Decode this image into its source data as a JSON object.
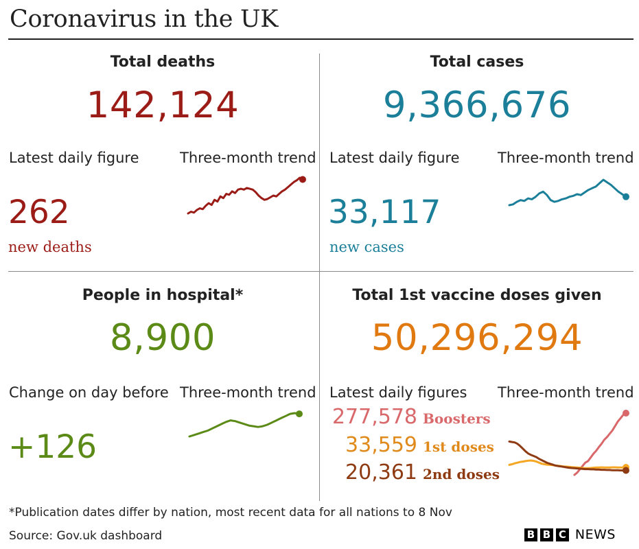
{
  "header": {
    "title": "Coronavirus in the UK"
  },
  "panels": {
    "deaths": {
      "title": "Total deaths",
      "total": "142,124",
      "color": "#9b1c16",
      "daily_label": "Latest daily figure",
      "trend_label": "Three-month trend",
      "daily_value": "262",
      "daily_sub": "new deaths"
    },
    "cases": {
      "title": "Total cases",
      "total": "9,366,676",
      "color": "#1b7f99",
      "daily_label": "Latest daily figure",
      "trend_label": "Three-month trend",
      "daily_value": "33,117",
      "daily_sub": "new cases"
    },
    "hospital": {
      "title": "People in hospital*",
      "total": "8,900",
      "color": "#5b8a16",
      "daily_label": "Change on day before",
      "trend_label": "Three-month trend",
      "daily_value": "+126"
    },
    "vaccine": {
      "title": "Total 1st vaccine doses given",
      "total": "50,296,294",
      "color": "#e07a10",
      "daily_label": "Latest daily figures",
      "trend_label": "Three-month trend",
      "boosters": {
        "value": "277,578",
        "label": "Boosters",
        "color": "#d9686b"
      },
      "first": {
        "value": "33,559",
        "label": "1st doses",
        "color": "#e08a1c"
      },
      "second": {
        "value": "20,361",
        "label": "2nd doses",
        "color": "#8e3a12"
      }
    }
  },
  "footer": {
    "note": "*Publication dates differ by nation, most recent data for all nations to 8 Nov",
    "source": "Source: Gov.uk dashboard",
    "brand_letters": [
      "B",
      "B",
      "C"
    ],
    "brand_word": "NEWS"
  },
  "chart_data": [
    {
      "type": "line",
      "name": "deaths-trend",
      "series": [
        {
          "values": [
            10,
            12,
            11,
            14,
            16,
            15,
            19,
            22,
            20,
            26,
            24,
            30,
            28,
            33,
            32,
            36,
            34,
            38,
            39,
            38,
            40,
            39,
            38,
            35,
            31,
            28,
            26,
            27,
            29,
            31,
            30,
            33,
            36,
            38,
            41,
            44,
            47,
            49,
            52,
            50
          ]
        }
      ]
    },
    {
      "type": "line",
      "name": "cases-trend",
      "series": [
        {
          "values": [
            20,
            21,
            24,
            26,
            25,
            28,
            27,
            30,
            34,
            36,
            32,
            26,
            24,
            25,
            27,
            28,
            30,
            31,
            33,
            32,
            35,
            38,
            40,
            42,
            46,
            50,
            47,
            44,
            40,
            36,
            33,
            30
          ]
        }
      ]
    },
    {
      "type": "line",
      "name": "hospital-trend",
      "series": [
        {
          "values": [
            10,
            12,
            14,
            16,
            18,
            21,
            24,
            27,
            30,
            32,
            31,
            29,
            27,
            25,
            24,
            23,
            24,
            26,
            29,
            32,
            35,
            38,
            41,
            42,
            41
          ]
        }
      ]
    },
    {
      "type": "line",
      "name": "vaccine-trend",
      "series": [
        {
          "name": "Boosters",
          "values": [
            null,
            null,
            null,
            null,
            null,
            null,
            null,
            null,
            null,
            null,
            null,
            null,
            null,
            null,
            null,
            null,
            null,
            null,
            null,
            null,
            null,
            null,
            null,
            null,
            0,
            10,
            25,
            40,
            55,
            62,
            78,
            95,
            108,
            125,
            140,
            158,
            170,
            185,
            200,
            220,
            240,
            255,
            270,
            278
          ]
        },
        {
          "name": "1st doses",
          "values": [
            45,
            48,
            52,
            55,
            58,
            60,
            62,
            64,
            65,
            63,
            60,
            55,
            50,
            48,
            46,
            45,
            44,
            42,
            41,
            40,
            38,
            37,
            36,
            35,
            34,
            33,
            32,
            31,
            30,
            30,
            31,
            32,
            33,
            33,
            34,
            33,
            33,
            33,
            34,
            34,
            33,
            33,
            33,
            34
          ]
        },
        {
          "name": "2nd doses",
          "values": [
            150,
            148,
            146,
            140,
            130,
            118,
            106,
            96,
            90,
            85,
            80,
            72,
            66,
            60,
            54,
            50,
            46,
            42,
            40,
            38,
            36,
            34,
            32,
            31,
            30,
            29,
            28,
            27,
            26,
            26,
            25,
            25,
            24,
            24,
            23,
            23,
            22,
            22,
            21,
            21,
            21,
            20,
            20,
            20
          ]
        }
      ]
    }
  ]
}
